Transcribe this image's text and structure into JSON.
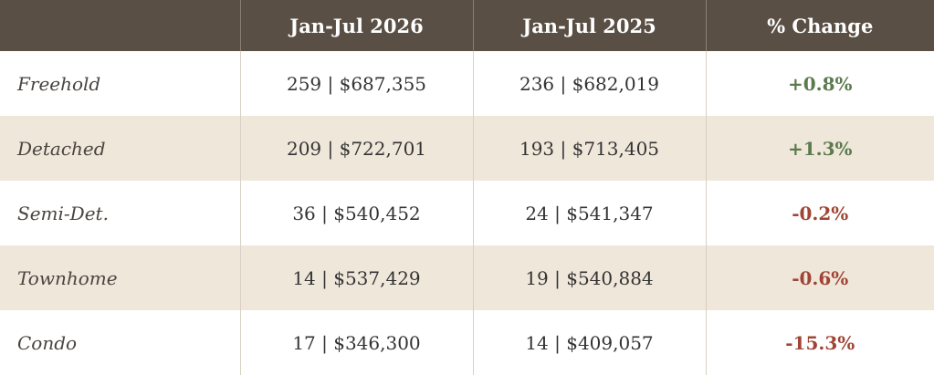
{
  "table": {
    "header": [
      "",
      "Jan-Jul 2026",
      "Jan-Jul 2025",
      "% Change"
    ],
    "rows": [
      [
        "Freehold",
        "259 | $687,355",
        "236 | $682,019",
        "+0.8%"
      ],
      [
        "Detached",
        "209 | $722,701",
        "193 | $713,405",
        "+1.3%"
      ],
      [
        "Semi-Det.",
        "36 | $540,452",
        "24 | $541,347",
        "-0.2%"
      ],
      [
        "Townhome",
        "14 | $537,429",
        "19 | $540,884",
        "-0.6%"
      ],
      [
        "Condo",
        "17 | $346,300",
        "14 | $409,057",
        "-15.3%"
      ]
    ]
  }
}
